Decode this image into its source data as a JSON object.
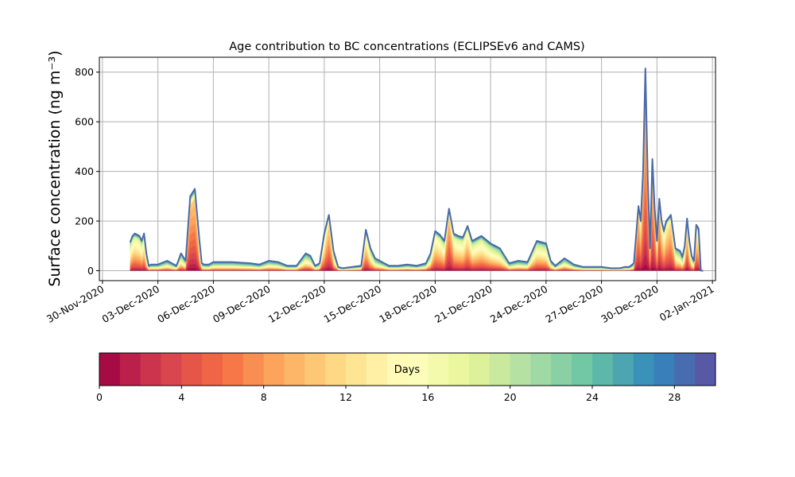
{
  "chart_data": {
    "type": "area",
    "title": "Age contribution to BC concentrations (ECLIPSEv6 and CAMS)",
    "ylabel": "Surface concentration (ng m⁻³)",
    "xlabel": "",
    "ylim": [
      -40,
      860
    ],
    "xlim": [
      "2020-11-29T20:00",
      "2021-01-02T04:00"
    ],
    "grid": true,
    "y_ticks": [
      0,
      200,
      400,
      600,
      800
    ],
    "x_ticks": [
      {
        "date": "2020-11-30",
        "label": "30-Nov-2020"
      },
      {
        "date": "2020-12-03",
        "label": "03-Dec-2020"
      },
      {
        "date": "2020-12-06",
        "label": "06-Dec-2020"
      },
      {
        "date": "2020-12-09",
        "label": "09-Dec-2020"
      },
      {
        "date": "2020-12-12",
        "label": "12-Dec-2020"
      },
      {
        "date": "2020-12-15",
        "label": "15-Dec-2020"
      },
      {
        "date": "2020-12-18",
        "label": "18-Dec-2020"
      },
      {
        "date": "2020-12-21",
        "label": "21-Dec-2020"
      },
      {
        "date": "2020-12-24",
        "label": "24-Dec-2020"
      },
      {
        "date": "2020-12-27",
        "label": "27-Dec-2020"
      },
      {
        "date": "2020-12-30",
        "label": "30-Dec-2020"
      },
      {
        "date": "2021-01-02",
        "label": "02-Jan-2021"
      }
    ],
    "total_series": {
      "x": [
        "2020-12-01T12:00",
        "2020-12-01T15:00",
        "2020-12-01T18:00",
        "2020-12-01T21:00",
        "2020-12-02T00:00",
        "2020-12-02T03:00",
        "2020-12-02T06:00",
        "2020-12-02T09:00",
        "2020-12-02T12:00",
        "2020-12-02T15:00",
        "2020-12-03T00:00",
        "2020-12-03T12:00",
        "2020-12-04T00:00",
        "2020-12-04T06:00",
        "2020-12-04T12:00",
        "2020-12-04T18:00",
        "2020-12-05T00:00",
        "2020-12-05T06:00",
        "2020-12-05T09:00",
        "2020-12-05T12:00",
        "2020-12-05T15:00",
        "2020-12-05T18:00",
        "2020-12-06T00:00",
        "2020-12-06T12:00",
        "2020-12-07T00:00",
        "2020-12-08T00:00",
        "2020-12-08T12:00",
        "2020-12-09T00:00",
        "2020-12-09T12:00",
        "2020-12-10T00:00",
        "2020-12-10T12:00",
        "2020-12-11T00:00",
        "2020-12-11T06:00",
        "2020-12-11T12:00",
        "2020-12-11T18:00",
        "2020-12-12T00:00",
        "2020-12-12T06:00",
        "2020-12-12T12:00",
        "2020-12-12T18:00",
        "2020-12-13T00:00",
        "2020-12-13T12:00",
        "2020-12-14T00:00",
        "2020-12-14T06:00",
        "2020-12-14T12:00",
        "2020-12-14T18:00",
        "2020-12-15T00:00",
        "2020-12-15T12:00",
        "2020-12-16T00:00",
        "2020-12-16T12:00",
        "2020-12-17T00:00",
        "2020-12-17T06:00",
        "2020-12-17T12:00",
        "2020-12-17T18:00",
        "2020-12-18T00:00",
        "2020-12-18T06:00",
        "2020-12-18T12:00",
        "2020-12-18T18:00",
        "2020-12-19T00:00",
        "2020-12-19T06:00",
        "2020-12-19T12:00",
        "2020-12-19T18:00",
        "2020-12-20T00:00",
        "2020-12-20T12:00",
        "2020-12-21T00:00",
        "2020-12-21T12:00",
        "2020-12-22T00:00",
        "2020-12-22T12:00",
        "2020-12-23T00:00",
        "2020-12-23T12:00",
        "2020-12-24T00:00",
        "2020-12-24T06:00",
        "2020-12-24T12:00",
        "2020-12-25T00:00",
        "2020-12-25T12:00",
        "2020-12-26T00:00",
        "2020-12-26T12:00",
        "2020-12-27T00:00",
        "2020-12-27T12:00",
        "2020-12-28T00:00",
        "2020-12-28T06:00",
        "2020-12-28T12:00",
        "2020-12-28T18:00",
        "2020-12-29T00:00",
        "2020-12-29T03:00",
        "2020-12-29T06:00",
        "2020-12-29T09:00",
        "2020-12-29T12:00",
        "2020-12-29T15:00",
        "2020-12-29T18:00",
        "2020-12-29T21:00",
        "2020-12-30T00:00",
        "2020-12-30T03:00",
        "2020-12-30T06:00",
        "2020-12-30T09:00",
        "2020-12-30T12:00",
        "2020-12-30T18:00",
        "2020-12-31T00:00",
        "2020-12-31T06:00",
        "2020-12-31T09:00",
        "2020-12-31T12:00",
        "2020-12-31T15:00",
        "2020-12-31T18:00",
        "2020-12-31T21:00",
        "2021-01-01T00:00",
        "2021-01-01T03:00",
        "2021-01-01T06:00",
        "2021-01-01T09:00",
        "2021-01-01T12:00"
      ],
      "values": [
        115,
        140,
        150,
        145,
        140,
        120,
        150,
        70,
        20,
        25,
        25,
        40,
        20,
        70,
        40,
        300,
        330,
        120,
        30,
        25,
        25,
        25,
        35,
        35,
        35,
        30,
        25,
        40,
        35,
        20,
        20,
        70,
        60,
        20,
        30,
        150,
        225,
        80,
        15,
        10,
        15,
        20,
        165,
        90,
        50,
        40,
        20,
        20,
        25,
        20,
        25,
        30,
        70,
        160,
        145,
        120,
        250,
        150,
        140,
        135,
        180,
        120,
        140,
        110,
        90,
        30,
        40,
        35,
        120,
        110,
        40,
        20,
        50,
        25,
        15,
        15,
        15,
        10,
        10,
        15,
        15,
        30,
        260,
        200,
        400,
        815,
        370,
        90,
        450,
        250,
        120,
        290,
        200,
        160,
        200,
        225,
        90,
        80,
        55,
        100,
        210,
        120,
        60,
        40,
        185,
        170,
        0,
        0
      ],
      "line_color": "#4a6aa8"
    },
    "age_colorbar": {
      "label": "Days",
      "min": 0,
      "max": 30,
      "n_bins": 30,
      "ticks": [
        0,
        4,
        8,
        12,
        16,
        20,
        24,
        28
      ],
      "colormap": "Spectral",
      "colors": [
        "#9e0142",
        "#d53e4f",
        "#f46d43",
        "#fdae61",
        "#fee08b",
        "#ffffbf",
        "#e6f598",
        "#abdda4",
        "#66c2a5",
        "#3288bd",
        "#5e4fa2"
      ]
    }
  }
}
